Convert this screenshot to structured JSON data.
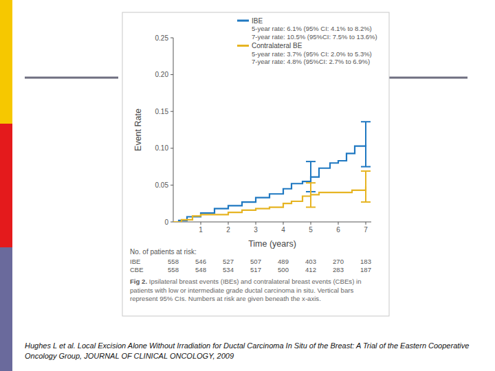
{
  "chart_data": {
    "type": "step",
    "xlabel": "Time (years)",
    "ylabel": "Event Rate",
    "xlim": [
      0,
      7.2
    ],
    "xticks": [
      1,
      2,
      3,
      4,
      5,
      6,
      7
    ],
    "ylim": [
      0,
      0.25
    ],
    "yticks": [
      0,
      0.05,
      {
        "value": 0.1,
        "label": "0.10"
      },
      0.15,
      {
        "value": 0.2,
        "label": "0.20"
      },
      0.25
    ],
    "grid": false,
    "legend": "top",
    "series": [
      {
        "name": "IBE",
        "color": "#1f78c1",
        "notes": [
          "5-year rate: 6.1% (95% CI: 4.1% to 8.2%)",
          "7-year rate: 10.5% (95%CI: 7.5% to 13.6%)"
        ],
        "x": [
          0,
          0.2,
          0.5,
          1,
          1.5,
          2,
          2.5,
          3,
          3.5,
          4,
          4.3,
          4.7,
          5,
          5.3,
          5.7,
          6,
          6.3,
          6.6,
          7
        ],
        "values": [
          0,
          0.002,
          0.007,
          0.012,
          0.018,
          0.022,
          0.027,
          0.033,
          0.038,
          0.045,
          0.052,
          0.055,
          0.061,
          0.073,
          0.08,
          0.083,
          0.093,
          0.103,
          0.105
        ],
        "ci": {
          "x": [
            5,
            7
          ],
          "low": [
            0.041,
            0.075
          ],
          "high": [
            0.082,
            0.136
          ]
        }
      },
      {
        "name": "Contralateral BE",
        "color": "#e6b422",
        "notes": [
          "5-year rate: 3.7% (95% CI: 2.0% to 5.3%)",
          "7-year rate: 4.8% (95%CI: 2.7% to 6.9%)"
        ],
        "x": [
          0,
          0.3,
          0.7,
          1,
          2,
          2.5,
          3,
          3.5,
          4,
          4.3,
          4.7,
          5,
          5.3,
          6,
          6.5,
          7
        ],
        "values": [
          0,
          0.003,
          0.008,
          0.01,
          0.013,
          0.016,
          0.018,
          0.02,
          0.025,
          0.028,
          0.035,
          0.037,
          0.04,
          0.04,
          0.043,
          0.048
        ],
        "ci": {
          "x": [
            5,
            7
          ],
          "low": [
            0.02,
            0.027
          ],
          "high": [
            0.053,
            0.069
          ]
        }
      }
    ],
    "at_risk": {
      "title": "No. of patients at risk:",
      "x": [
        0,
        1,
        2,
        3,
        4,
        5,
        6,
        7
      ],
      "rows": [
        {
          "name": "IBE",
          "values": [
            558,
            546,
            527,
            507,
            489,
            403,
            270,
            183
          ]
        },
        {
          "name": "CBE",
          "values": [
            558,
            548,
            534,
            517,
            500,
            412,
            283,
            187
          ]
        }
      ]
    },
    "caption_label": "Fig 2.",
    "caption": "Ipsilateral breast events (IBEs) and contralateral breast events (CBEs) in patients with low or intermediate grade ductal carcinoma in situ. Vertical bars represent 95% CIs. Numbers at risk are given beneath the x-axis."
  },
  "citation": "Hughes L et al. Local Excision Alone Without Irradiation for Ductal Carcinoma In Situ of the Breast: A Trial of the Eastern Cooperative Oncology Group, JOURNAL OF CLINICAL ONCOLOGY, 2009"
}
